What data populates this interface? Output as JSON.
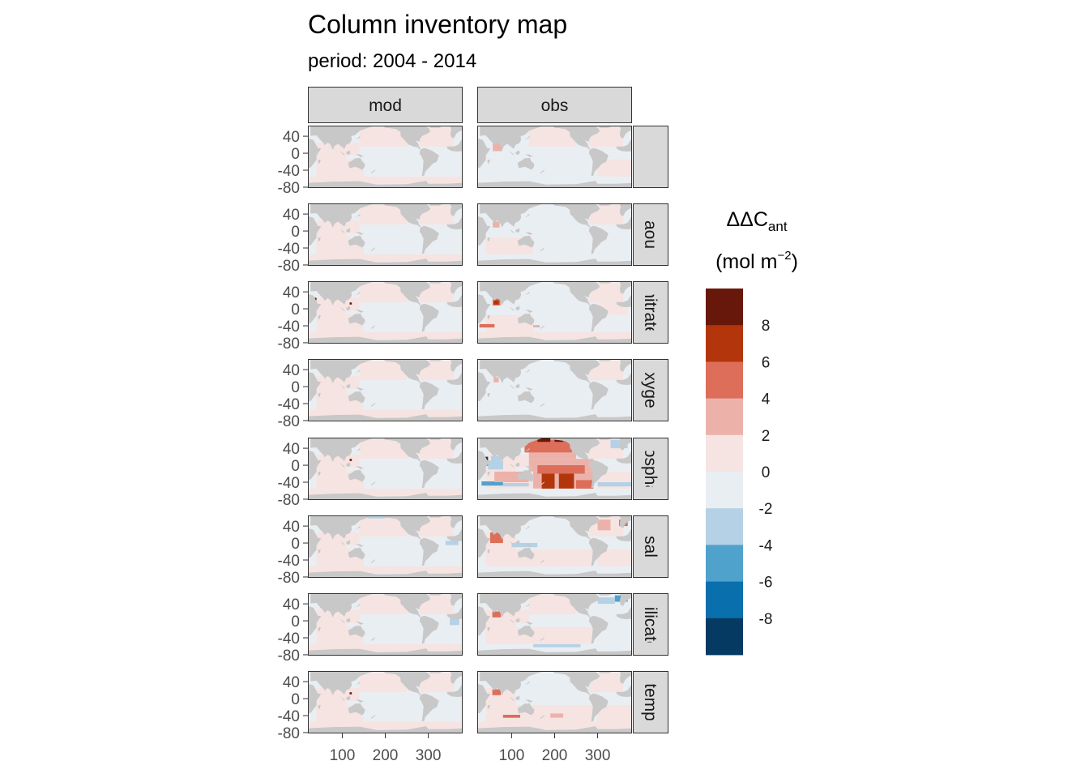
{
  "title": "Column inventory map",
  "subtitle": "period: 2004 - 2014",
  "colors": {
    "land": "#c8c8c8",
    "strip_fill": "#d9d9d9",
    "strip_border": "#333333",
    "panel_border": "#333333"
  },
  "icons": [
    "land-mask"
  ],
  "chart_data": {
    "type": "heatmap",
    "title": "Column inventory map",
    "subtitle": "period: 2004 - 2014",
    "facet_columns": [
      "mod",
      "obs"
    ],
    "facet_rows": [
      "",
      "aou",
      "nitrate",
      "oxygen",
      "phosphate",
      "sal",
      "silicate",
      "temp"
    ],
    "x_ticks": [
      "100",
      "200",
      "300"
    ],
    "y_ticks": [
      "40",
      "0",
      "-40",
      "-80"
    ],
    "x_tick_values": [
      100,
      200,
      300
    ],
    "y_tick_values": [
      40,
      0,
      -40,
      -80
    ],
    "xlim": [
      20,
      380
    ],
    "ylim": [
      -82,
      65
    ],
    "grid": false,
    "legend": {
      "position": "right",
      "title_main": "ΔΔC",
      "title_sub": "ant",
      "title_unit_left": "(mol m",
      "title_unit_sup": "−2",
      "title_unit_right": ")",
      "labels": [
        "8",
        "6",
        "4",
        "2",
        "0",
        "-2",
        "-4",
        "-6",
        "-8"
      ],
      "breaks": [
        8,
        6,
        4,
        2,
        0,
        -2,
        -4,
        -6,
        -8
      ],
      "bins": [
        {
          "from": 8,
          "to": 10,
          "color": "#67180a"
        },
        {
          "from": 6,
          "to": 8,
          "color": "#b3350b"
        },
        {
          "from": 4,
          "to": 6,
          "color": "#dc6e5a"
        },
        {
          "from": 2,
          "to": 4,
          "color": "#ecb2aa"
        },
        {
          "from": 0,
          "to": 2,
          "color": "#f6e4e2"
        },
        {
          "from": -2,
          "to": 0,
          "color": "#e9eef3"
        },
        {
          "from": -4,
          "to": -2,
          "color": "#b5d1e6"
        },
        {
          "from": -6,
          "to": -4,
          "color": "#4fa2cc"
        },
        {
          "from": -8,
          "to": -6,
          "color": "#0a6fad"
        },
        {
          "from": -10,
          "to": -8,
          "color": "#053a62"
        }
      ]
    }
  }
}
